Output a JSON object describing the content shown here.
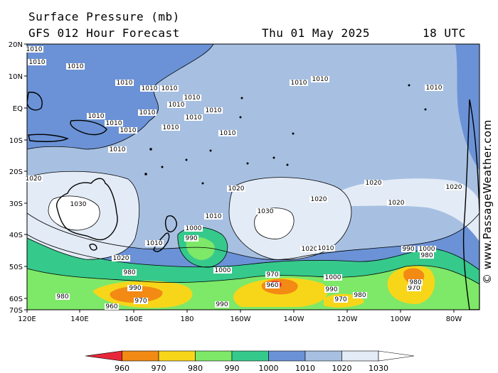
{
  "header": {
    "title": "Surface Pressure (mb)",
    "subtitle": "GFS 012 Hour Forecast",
    "datetime": "Thu 01 May 2025",
    "utc": "18 UTC"
  },
  "watermark": "© www.PassageWeather.com",
  "axes": {
    "lat_labels": [
      "20N",
      "10N",
      "EQ",
      "10S",
      "20S",
      "30S",
      "40S",
      "50S",
      "60S",
      "70S"
    ],
    "lon_labels": [
      "120E",
      "140E",
      "160E",
      "180",
      "160W",
      "140W",
      "120W",
      "100W",
      "80W"
    ]
  },
  "isobar_labels": [
    "1010",
    "1010",
    "1010",
    "1010",
    "1010",
    "1010",
    "1010",
    "1010",
    "1010",
    "1010",
    "1010",
    "1010",
    "1010",
    "1010",
    "1010",
    "1010",
    "1010",
    "1010",
    "1010",
    "1010",
    "1020",
    "1020",
    "1020",
    "1020",
    "1020",
    "1020",
    "1020",
    "1020",
    "1030",
    "1030",
    "1010",
    "1000",
    "990",
    "1010",
    "1010",
    "1000",
    "1000",
    "990",
    "990",
    "980",
    "980",
    "980",
    "970",
    "970",
    "970",
    "970",
    "960",
    "960",
    "980",
    "980",
    "990",
    "990",
    "1000",
    "990"
  ],
  "colorbar": {
    "levels": [
      "960",
      "970",
      "980",
      "990",
      "1000",
      "1010",
      "1020",
      "1030"
    ],
    "colors": [
      "#e8283a",
      "#f28a14",
      "#f7d61a",
      "#7ee868",
      "#36c98c",
      "#6b92d6",
      "#a7c0e2",
      "#e3ebf6"
    ]
  }
}
